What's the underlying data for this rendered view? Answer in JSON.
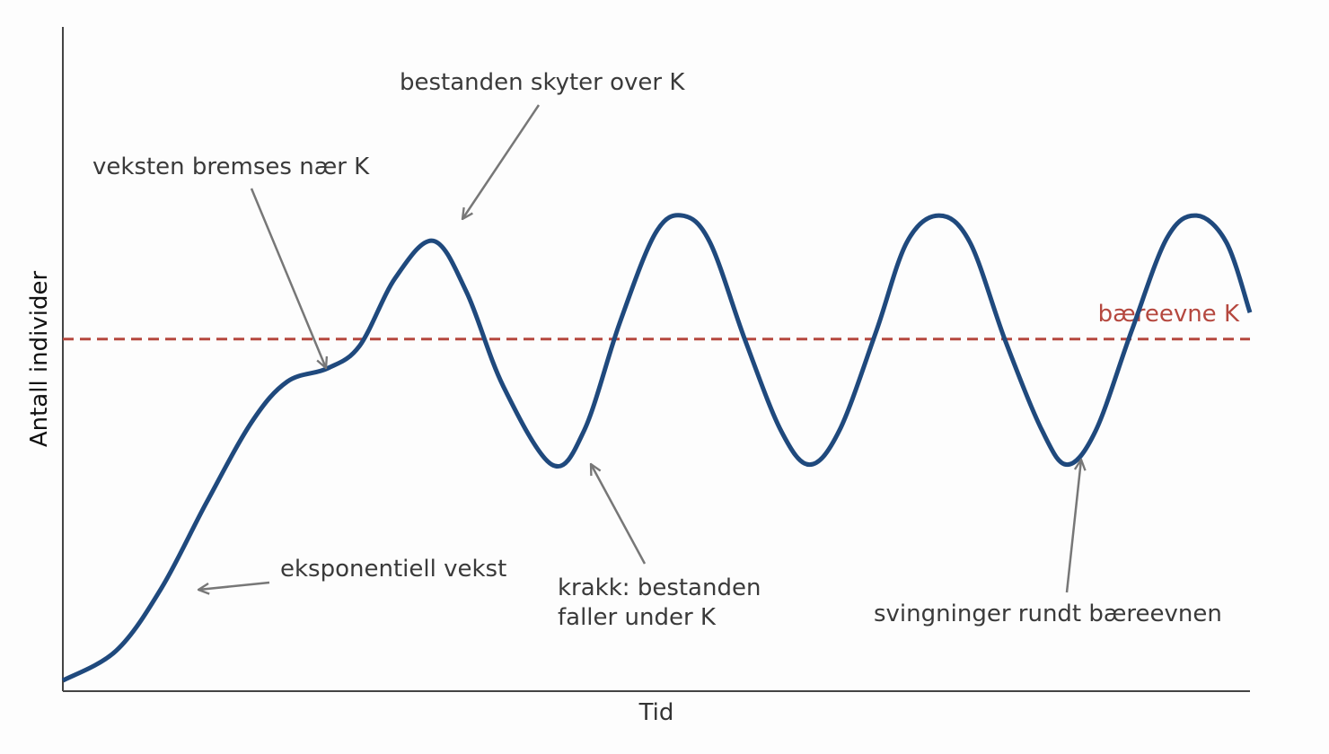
{
  "chart_data": {
    "type": "line",
    "x_label": "Tid",
    "y_label": "Antall individer",
    "xlim": [
      0,
      100
    ],
    "ylim": [
      0,
      100
    ],
    "x": [
      0,
      4.5,
      8.3,
      12.1,
      15.9,
      18.9,
      22.3,
      25.0,
      28.0,
      31.2,
      34.0,
      37.1,
      41.2,
      43.9,
      46.9,
      49.9,
      52.2,
      54.5,
      57.5,
      60.5,
      62.9,
      65.4,
      68.5,
      71.1,
      73.8,
      76.4,
      79.4,
      82.5,
      84.6,
      87.0,
      90.0,
      93.0,
      95.5,
      98.0,
      100
    ],
    "series": [
      {
        "color": "#1f497d",
        "values": [
          1.6,
          6.1,
          15.5,
          28.4,
          40.5,
          46.6,
          48.6,
          52.0,
          62.2,
          67.8,
          60.1,
          45.9,
          34.1,
          39.2,
          55.4,
          68.9,
          71.6,
          67.6,
          52.7,
          39.2,
          34.1,
          39.2,
          54.1,
          67.6,
          71.6,
          67.6,
          52.7,
          39.2,
          34.1,
          39.2,
          54.1,
          68.2,
          71.6,
          67.6,
          57.0
        ]
      }
    ],
    "hlines": [
      {
        "value": 53,
        "label": "bæreevne K",
        "color": "#b5483f"
      }
    ],
    "annotations": [
      {
        "text": [
          "bestanden skyter over K"
        ]
      },
      {
        "text": [
          "veksten bremses nær K"
        ]
      },
      {
        "text": [
          "eksponentiell vekst"
        ]
      },
      {
        "text": [
          "krakk: bestanden",
          "faller under K"
        ]
      },
      {
        "text": [
          "svingninger rundt bæreevnen"
        ]
      }
    ]
  }
}
